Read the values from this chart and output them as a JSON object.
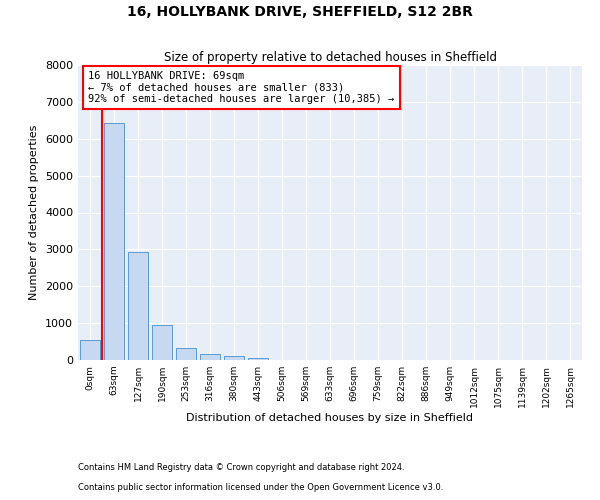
{
  "title1": "16, HOLLYBANK DRIVE, SHEFFIELD, S12 2BR",
  "title2": "Size of property relative to detached houses in Sheffield",
  "xlabel": "Distribution of detached houses by size in Sheffield",
  "ylabel": "Number of detached properties",
  "bar_labels": [
    "0sqm",
    "63sqm",
    "127sqm",
    "190sqm",
    "253sqm",
    "316sqm",
    "380sqm",
    "443sqm",
    "506sqm",
    "569sqm",
    "633sqm",
    "696sqm",
    "759sqm",
    "822sqm",
    "886sqm",
    "949sqm",
    "1012sqm",
    "1075sqm",
    "1139sqm",
    "1202sqm",
    "1265sqm"
  ],
  "bar_values": [
    550,
    6430,
    2920,
    960,
    330,
    155,
    105,
    65,
    0,
    0,
    0,
    0,
    0,
    0,
    0,
    0,
    0,
    0,
    0,
    0,
    0
  ],
  "bar_color": "#c6d9f0",
  "bar_edge_color": "#5b9bd5",
  "vline_x": 1,
  "vline_color": "red",
  "annotation_line1": "16 HOLLYBANK DRIVE: 69sqm",
  "annotation_line2": "← 7% of detached houses are smaller (833)",
  "annotation_line3": "92% of semi-detached houses are larger (10,385) →",
  "annotation_box_color": "white",
  "annotation_box_edge": "red",
  "ylim": [
    0,
    8000
  ],
  "yticks": [
    0,
    1000,
    2000,
    3000,
    4000,
    5000,
    6000,
    7000,
    8000
  ],
  "background_color": "#e8eef7",
  "footer1": "Contains HM Land Registry data © Crown copyright and database right 2024.",
  "footer2": "Contains public sector information licensed under the Open Government Licence v3.0."
}
